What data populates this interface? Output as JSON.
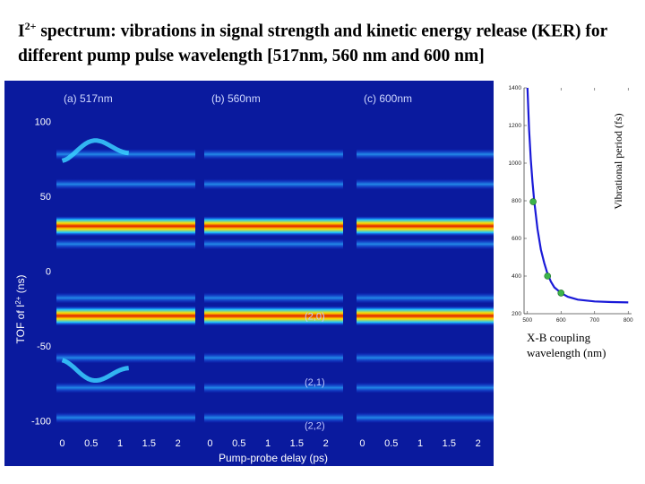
{
  "title": {
    "species": "I",
    "charge": "2+",
    "text": " spectrum: vibrations in signal strength and kinetic energy release (KER) for different pump pulse wavelength [517nm, 560 nm and 600 nm]"
  },
  "chart_data": [
    {
      "type": "heatmap",
      "panels": [
        {
          "label": "(a) 517nm",
          "pump_wavelength_nm": 517
        },
        {
          "label": "(b) 560nm",
          "pump_wavelength_nm": 560
        },
        {
          "label": "(c) 600nm",
          "pump_wavelength_nm": 600
        }
      ],
      "xlabel": "Pump-probe delay (ps)",
      "ylabel_prefix": "TOF of I",
      "ylabel_charge": "2+",
      "ylabel_unit": " (ns)",
      "x_ticks": [
        "0",
        "0.5",
        "1",
        "1.5",
        "2"
      ],
      "xlim": [
        -0.1,
        2.3
      ],
      "y_ticks": [
        "100",
        "50",
        "0",
        "-50",
        "-100"
      ],
      "y_tick_values": [
        100,
        50,
        0,
        -50,
        -100
      ],
      "ylim": [
        -110,
        120
      ],
      "bright_bands_tof_ns": [
        30,
        -30
      ],
      "faint_bands_tof_ns": [
        78,
        58,
        18,
        -18,
        -58,
        -78,
        -98
      ],
      "state_labels": [
        {
          "text": "(2,0)",
          "tof": -30
        },
        {
          "text": "(2,1)",
          "tof": -74
        },
        {
          "text": "(2,2)",
          "tof": -103
        }
      ],
      "colors": {
        "background": "#0a1a9e",
        "band_core": "#e02000",
        "band_edge": "#20c8ff"
      }
    },
    {
      "type": "line",
      "xlabel": "X-B coupling wavelength (nm)",
      "ylabel": "Vibrational period (fs)",
      "x_ticks": [
        500,
        600,
        700,
        800
      ],
      "y_ticks": [
        200,
        400,
        600,
        800,
        1000,
        1200,
        1400
      ],
      "xlim": [
        490,
        810
      ],
      "ylim": [
        200,
        1400
      ],
      "curve": {
        "x": [
          500,
          505,
          510,
          515,
          520,
          530,
          540,
          550,
          560,
          570,
          580,
          600,
          620,
          650,
          700,
          750,
          800
        ],
        "y": [
          1400,
          1180,
          1020,
          900,
          800,
          650,
          540,
          470,
          410,
          370,
          340,
          310,
          290,
          275,
          265,
          262,
          260
        ]
      },
      "points": {
        "x": [
          517,
          560,
          600
        ],
        "y": [
          795,
          400,
          310
        ]
      },
      "colors": {
        "curve": "#1a1ad8",
        "points": "#3cb44b"
      }
    }
  ]
}
